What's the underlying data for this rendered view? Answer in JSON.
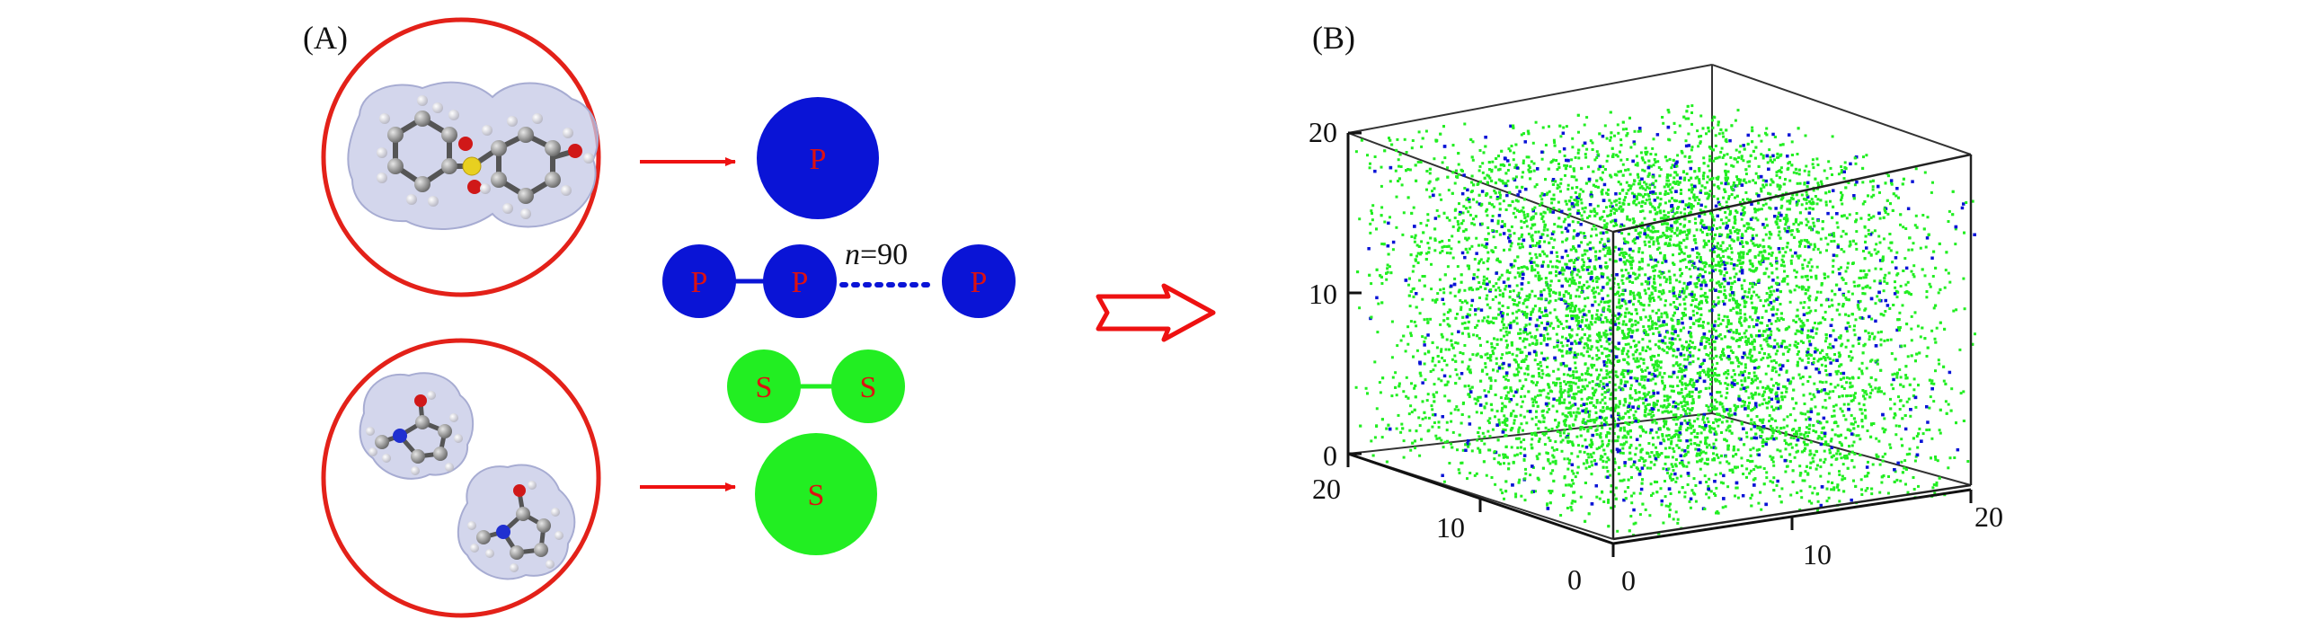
{
  "panel_a": {
    "label": "(A)",
    "polymer_bead": "P",
    "chain_count": "n=90",
    "chain_n_symbol": "n",
    "chain_n_value": "=90",
    "solvent_bead": "S"
  },
  "panel_b": {
    "label": "(B)",
    "axis_ticks_vertical": [
      "0",
      "10",
      "20"
    ],
    "axis_ticks_depth": [
      "20",
      "10",
      "0"
    ],
    "axis_ticks_horizontal": [
      "0",
      "10",
      "20"
    ]
  },
  "colors": {
    "polymer": "#0a14d6",
    "solvent": "#22ee22",
    "arrow": "#ee1111",
    "label_text": "#dd1111",
    "circle": "#e32119"
  }
}
